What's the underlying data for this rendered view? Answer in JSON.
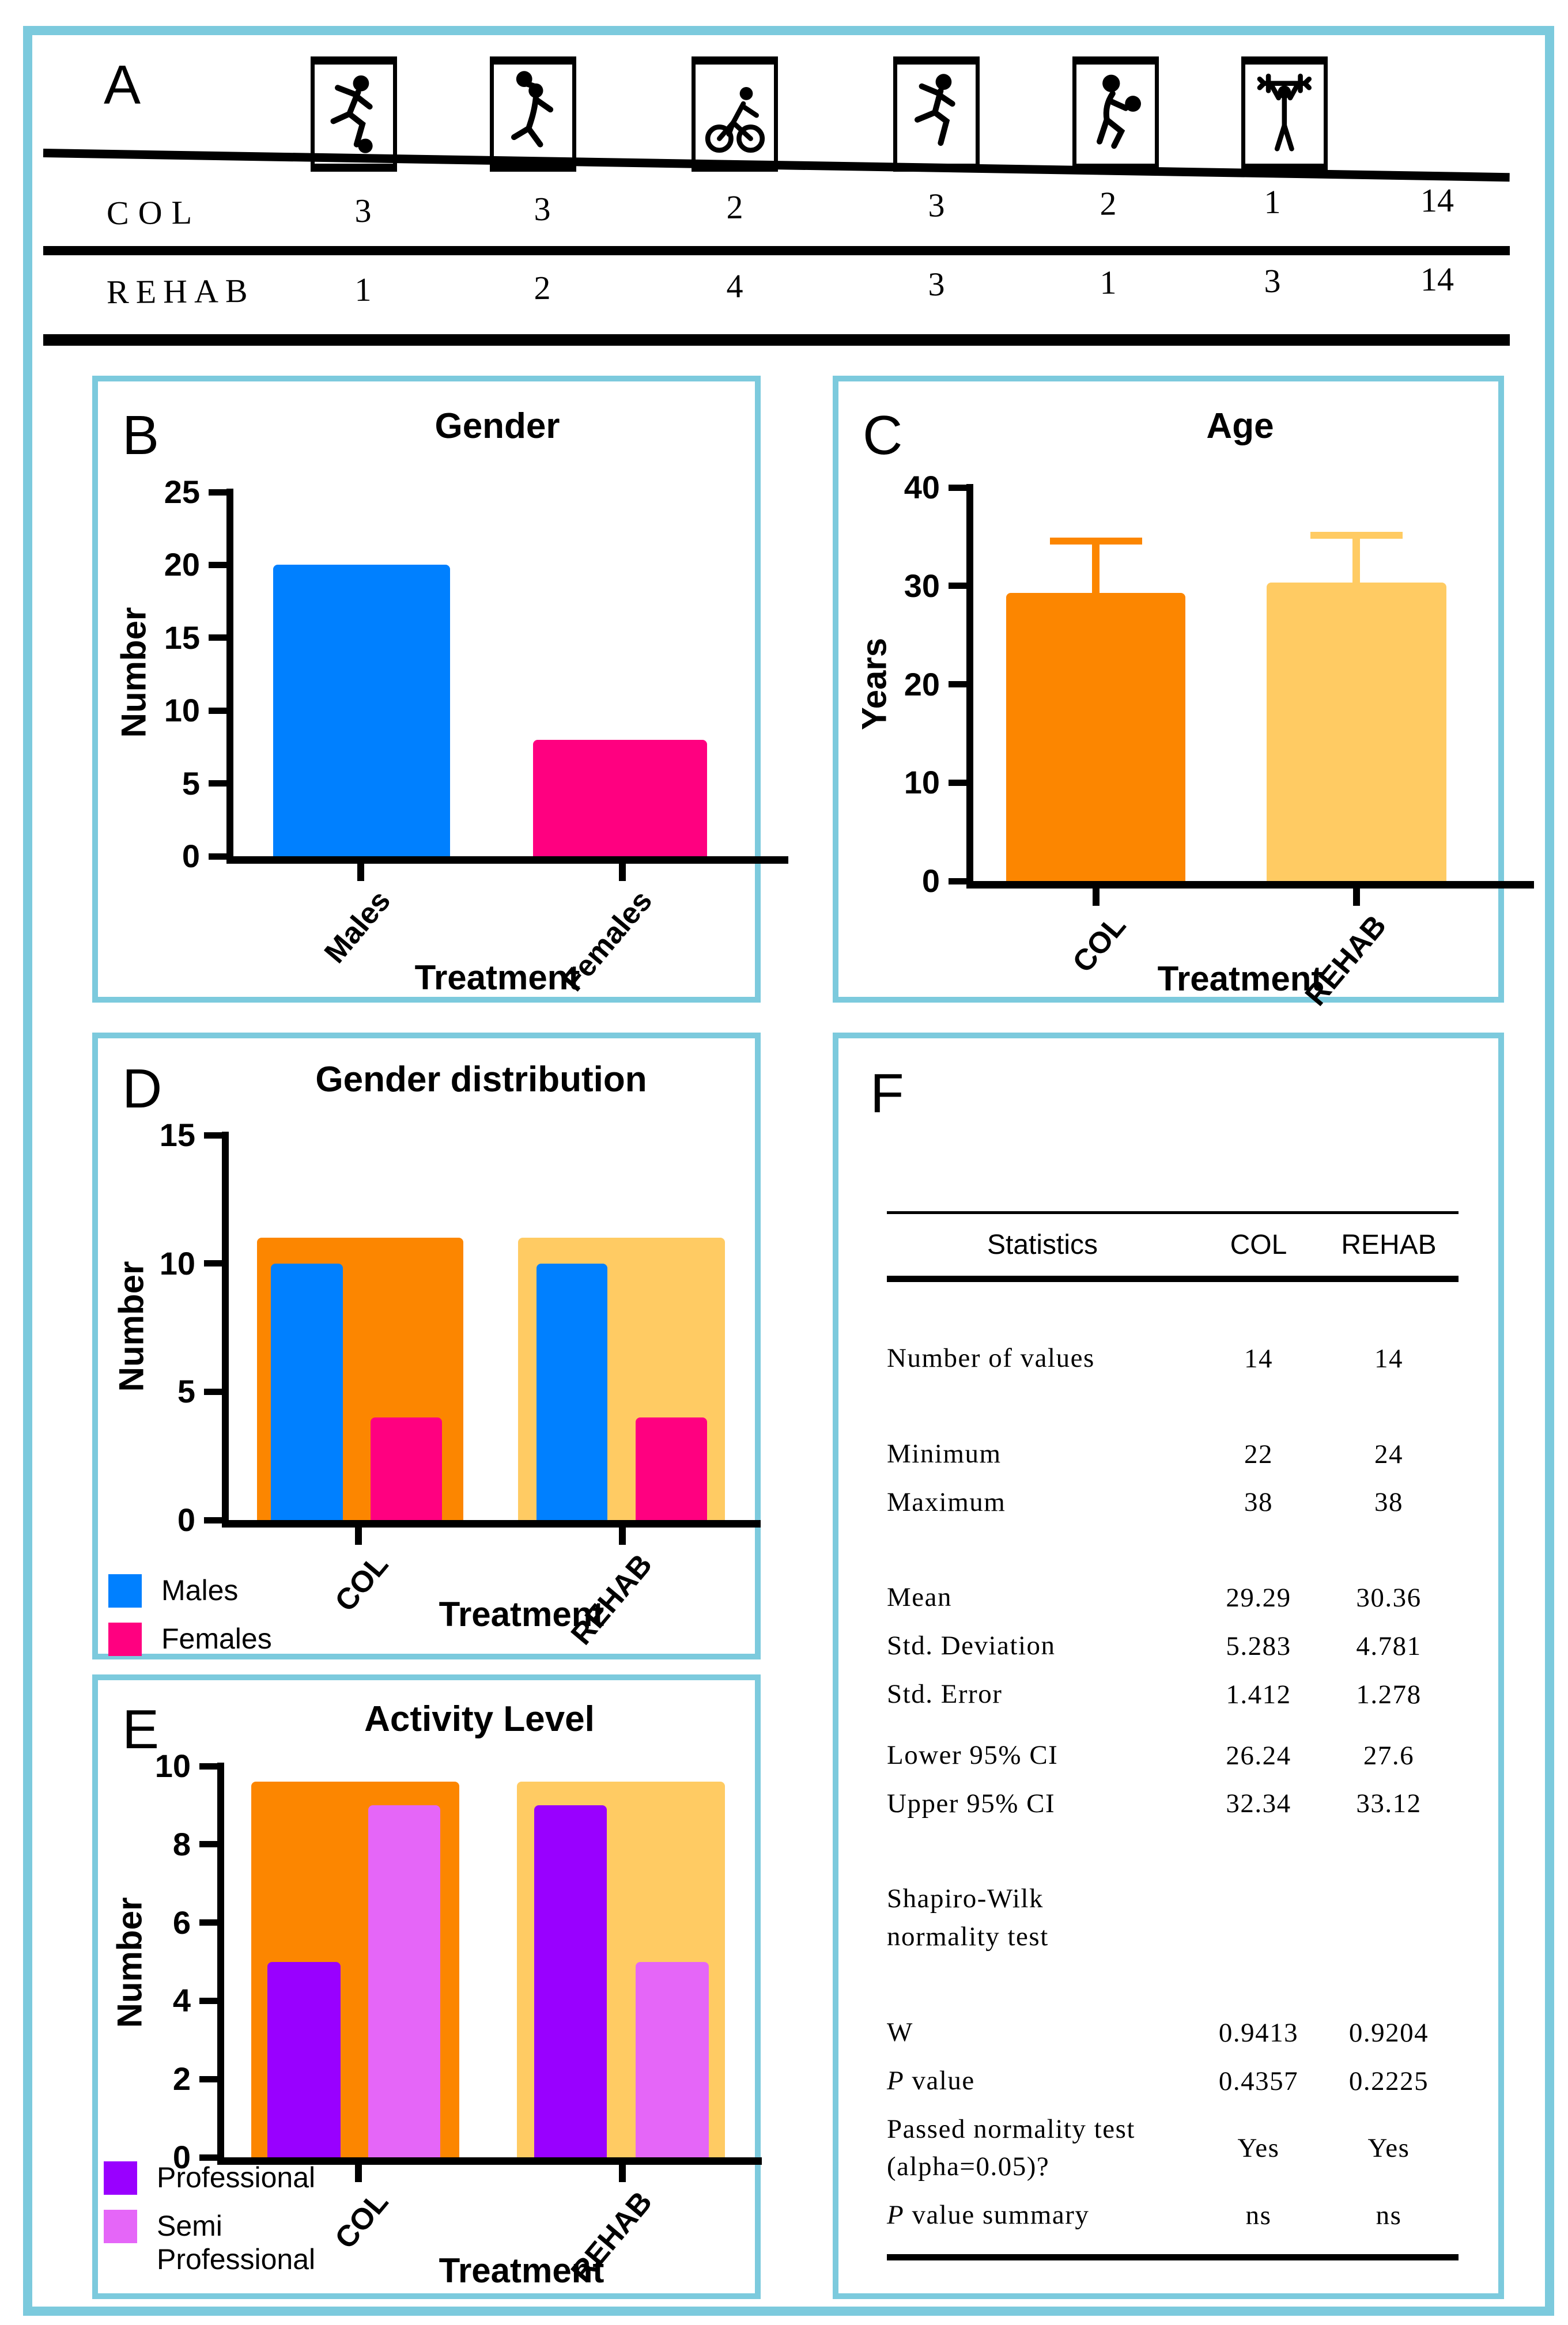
{
  "figure": {
    "border_color": "#7CCADD",
    "accent_black": "#000000"
  },
  "letters": {
    "a": "A",
    "b": "B",
    "c": "C",
    "d": "D",
    "e": "E",
    "f": "F"
  },
  "panelA": {
    "icons": [
      "soccer-icon",
      "volleyball-spike-icon",
      "cycling-icon",
      "running-icon",
      "volleyball-bump-icon",
      "weightlifting-icon"
    ],
    "rows": [
      {
        "label": "COL",
        "values": [
          "3",
          "3",
          "2",
          "3",
          "2",
          "1"
        ],
        "total": "14"
      },
      {
        "label": "REHAB",
        "values": [
          "1",
          "2",
          "4",
          "3",
          "1",
          "3"
        ],
        "total": "14"
      }
    ]
  },
  "chart_data": [
    {
      "id": "B",
      "type": "bar",
      "title": "Gender",
      "xlabel": "Treatment",
      "ylabel": "Number",
      "categories": [
        "Males",
        "Females"
      ],
      "values": [
        20,
        8
      ],
      "colors": [
        "#0080FF",
        "#FF0080"
      ],
      "ylim": [
        0,
        25
      ],
      "yticks": [
        0,
        5,
        10,
        15,
        20,
        25
      ],
      "grid": false,
      "legend_position": "none"
    },
    {
      "id": "C",
      "type": "bar",
      "title": "Age",
      "xlabel": "Treatment",
      "ylabel": "Years",
      "categories": [
        "COL",
        "REHAB"
      ],
      "values": [
        29.29,
        30.36
      ],
      "error_sd": [
        5.283,
        4.781
      ],
      "colors": [
        "#FC8600",
        "#FFCB63"
      ],
      "ylim": [
        0,
        40
      ],
      "yticks": [
        0,
        10,
        20,
        30,
        40
      ],
      "grid": false,
      "legend_position": "none"
    },
    {
      "id": "D",
      "type": "bar",
      "title": "Gender distribution",
      "xlabel": "Treatment",
      "ylabel": "Number",
      "categories": [
        "COL",
        "REHAB"
      ],
      "group_background": {
        "values": [
          11,
          11
        ],
        "colors": [
          "#FC8600",
          "#FFCB63"
        ]
      },
      "series": [
        {
          "name": "Males",
          "color": "#0080FF",
          "values": [
            10,
            10
          ]
        },
        {
          "name": "Females",
          "color": "#FF0080",
          "values": [
            4,
            4
          ]
        }
      ],
      "ylim": [
        0,
        15
      ],
      "yticks": [
        0,
        5,
        10,
        15
      ],
      "grid": false,
      "legend_position": "bottom-left"
    },
    {
      "id": "E",
      "type": "bar",
      "title": "Activity Level",
      "xlabel": "Treatment",
      "ylabel": "Number",
      "categories": [
        "COL",
        "REHAB"
      ],
      "group_background": {
        "values": [
          9.6,
          9.6
        ],
        "colors": [
          "#FC8600",
          "#FFCB63"
        ]
      },
      "series": [
        {
          "name": "Professional",
          "color": "#9900FF",
          "values": [
            5,
            9
          ]
        },
        {
          "name": "Semi Professional",
          "color": "#E566F8",
          "values": [
            9,
            5
          ]
        }
      ],
      "ylim": [
        0,
        10
      ],
      "yticks": [
        0,
        2,
        4,
        6,
        8,
        10
      ],
      "grid": false,
      "legend_position": "bottom-left"
    }
  ],
  "panelF": {
    "table": {
      "headers": [
        "Statistics",
        "COL",
        "REHAB"
      ],
      "rows": [
        {
          "label": "Number of values",
          "col": "14",
          "rehab": "14"
        },
        {
          "label": "Minimum",
          "col": "22",
          "rehab": "24"
        },
        {
          "label": "Maximum",
          "col": "38",
          "rehab": "38"
        },
        {
          "label": "Mean",
          "col": "29.29",
          "rehab": "30.36"
        },
        {
          "label": "Std. Deviation",
          "col": "5.283",
          "rehab": "4.781"
        },
        {
          "label": "Std. Error",
          "col": "1.412",
          "rehab": "1.278"
        },
        {
          "label": "Lower 95% CI",
          "col": "26.24",
          "rehab": "27.6"
        },
        {
          "label": "Upper 95% CI",
          "col": "32.34",
          "rehab": "33.12"
        },
        {
          "label": "Shapiro-Wilk normality test",
          "col": "",
          "rehab": ""
        },
        {
          "label": "W",
          "col": "0.9413",
          "rehab": "0.9204"
        },
        {
          "label": "P value",
          "col": "0.4357",
          "rehab": "0.2225"
        },
        {
          "label": "Passed normality test (alpha=0.05)?",
          "col": "Yes",
          "rehab": "Yes"
        },
        {
          "label": "P value summary",
          "col": "ns",
          "rehab": "ns"
        }
      ]
    }
  }
}
